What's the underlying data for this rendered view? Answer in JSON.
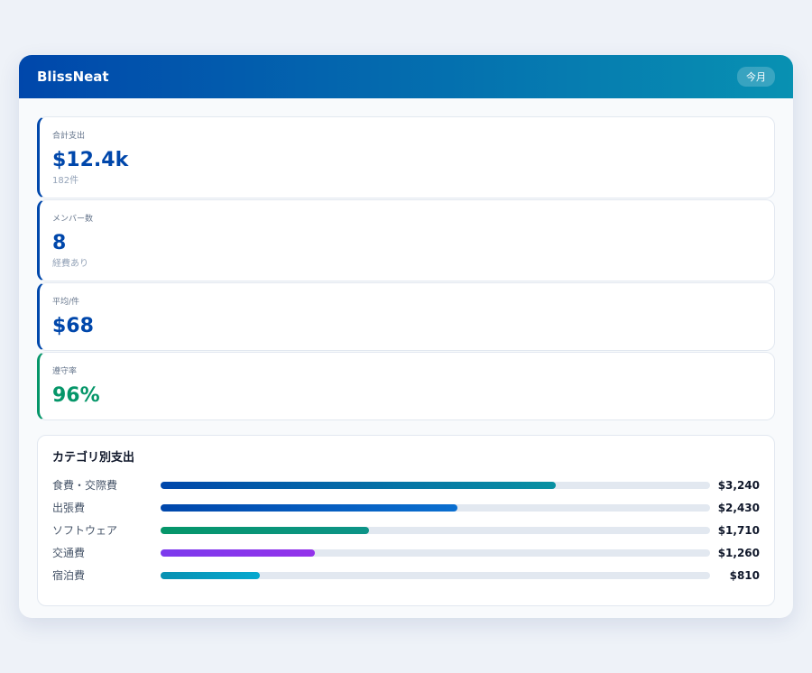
{
  "header": {
    "title": "BlissNeat",
    "badge": "今月"
  },
  "stats": [
    {
      "label": "合計支出",
      "value": "$12.4k",
      "sub": "182件",
      "color": "#0047ab"
    },
    {
      "label": "メンバー数",
      "value": "8",
      "sub": "経費あり",
      "color": "#0047ab"
    },
    {
      "label": "平均/件",
      "value": "$68",
      "color": "#0047ab"
    },
    {
      "label": "遵守率",
      "value": "96%",
      "color": "#059669"
    }
  ],
  "categories_panel": {
    "title": "カテゴリ別支出",
    "xlim": [
      0,
      4500
    ],
    "categories": [
      "食費・交際費",
      "出張費",
      "ソフトウェア",
      "交通費",
      "宿泊費"
    ],
    "values": [
      3240,
      2430,
      1710,
      1260,
      810
    ],
    "value_labels": [
      "$3,240",
      "$2,430",
      "$1,710",
      "$1,260",
      "$810"
    ],
    "colors": [
      [
        "#0047ab",
        "#0891a2"
      ],
      [
        "#0047ab",
        "#0a6fd0"
      ],
      [
        "#059669",
        "#0d9488"
      ],
      [
        "#7c3aed",
        "#9333ea"
      ],
      [
        "#0891b2",
        "#06a8cf"
      ]
    ]
  }
}
